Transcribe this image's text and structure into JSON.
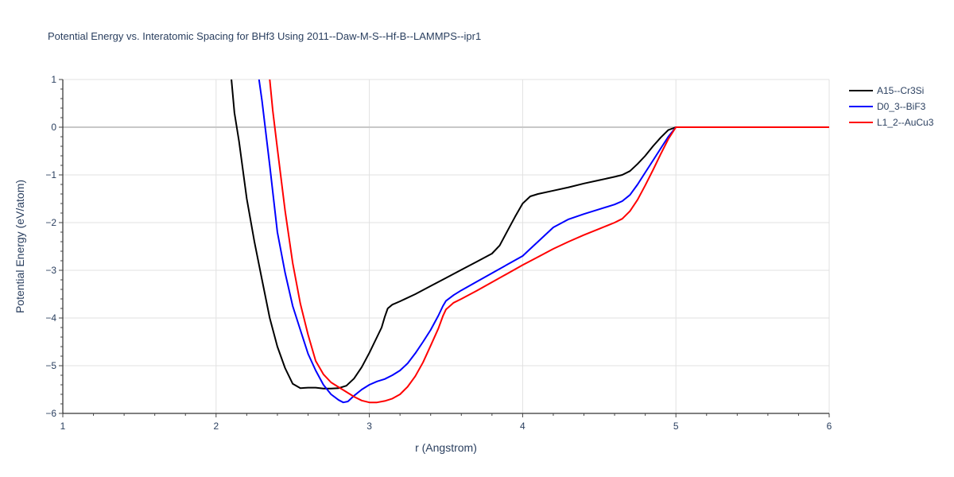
{
  "chart_data": {
    "type": "line",
    "title": "Potential Energy vs. Interatomic Spacing for BHf3 Using 2011--Daw-M-S--Hf-B--LAMMPS--ipr1",
    "xlabel": "r (Angstrom)",
    "ylabel": "Potential Energy (eV/atom)",
    "xlim": [
      1,
      6
    ],
    "ylim": [
      -6,
      1
    ],
    "xticks": [
      1,
      2,
      3,
      4,
      5,
      6
    ],
    "yticks": [
      1,
      0,
      -1,
      -2,
      -3,
      -4,
      -5,
      -6
    ],
    "ytick_labels": [
      "1",
      "0",
      "−1",
      "−2",
      "−3",
      "−4",
      "−5",
      "−6"
    ],
    "grid": true,
    "legend_position": "top-right",
    "series": [
      {
        "name": "A15--Cr3Si",
        "color": "#000000",
        "x": [
          2.1,
          2.12,
          2.15,
          2.2,
          2.25,
          2.3,
          2.35,
          2.4,
          2.45,
          2.5,
          2.55,
          2.6,
          2.65,
          2.7,
          2.75,
          2.8,
          2.85,
          2.9,
          2.95,
          3.0,
          3.05,
          3.08,
          3.1,
          3.12,
          3.15,
          3.2,
          3.3,
          3.4,
          3.5,
          3.6,
          3.7,
          3.8,
          3.85,
          3.9,
          3.95,
          4.0,
          4.05,
          4.1,
          4.2,
          4.3,
          4.4,
          4.5,
          4.6,
          4.65,
          4.7,
          4.75,
          4.8,
          4.85,
          4.9,
          4.95,
          5.0,
          5.5,
          6.0
        ],
        "y": [
          1.0,
          0.3,
          -0.3,
          -1.5,
          -2.4,
          -3.2,
          -4.0,
          -4.6,
          -5.05,
          -5.38,
          -5.47,
          -5.46,
          -5.46,
          -5.48,
          -5.48,
          -5.47,
          -5.42,
          -5.27,
          -5.03,
          -4.73,
          -4.4,
          -4.2,
          -3.98,
          -3.8,
          -3.72,
          -3.65,
          -3.5,
          -3.33,
          -3.16,
          -2.99,
          -2.82,
          -2.65,
          -2.48,
          -2.18,
          -1.88,
          -1.6,
          -1.45,
          -1.4,
          -1.33,
          -1.26,
          -1.18,
          -1.11,
          -1.04,
          -1.0,
          -0.92,
          -0.77,
          -0.6,
          -0.4,
          -0.22,
          -0.06,
          0.0,
          0.0,
          0.0
        ]
      },
      {
        "name": "D0_3--BiF3",
        "color": "#0000ff",
        "x": [
          2.28,
          2.3,
          2.35,
          2.4,
          2.45,
          2.5,
          2.55,
          2.6,
          2.65,
          2.7,
          2.75,
          2.8,
          2.83,
          2.86,
          2.9,
          2.95,
          3.0,
          3.05,
          3.1,
          3.15,
          3.2,
          3.25,
          3.3,
          3.35,
          3.4,
          3.45,
          3.48,
          3.5,
          3.55,
          3.6,
          3.7,
          3.8,
          3.9,
          4.0,
          4.05,
          4.1,
          4.2,
          4.3,
          4.4,
          4.5,
          4.6,
          4.65,
          4.7,
          4.75,
          4.8,
          4.85,
          4.9,
          4.95,
          5.0,
          5.5,
          6.0
        ],
        "y": [
          1.0,
          0.55,
          -0.8,
          -2.2,
          -3.05,
          -3.75,
          -4.25,
          -4.75,
          -5.1,
          -5.4,
          -5.6,
          -5.72,
          -5.77,
          -5.75,
          -5.63,
          -5.5,
          -5.4,
          -5.33,
          -5.28,
          -5.2,
          -5.1,
          -4.95,
          -4.74,
          -4.5,
          -4.25,
          -3.95,
          -3.75,
          -3.64,
          -3.52,
          -3.42,
          -3.24,
          -3.06,
          -2.88,
          -2.7,
          -2.55,
          -2.4,
          -2.1,
          -1.93,
          -1.82,
          -1.72,
          -1.62,
          -1.55,
          -1.42,
          -1.2,
          -0.95,
          -0.7,
          -0.45,
          -0.2,
          0.0,
          0.0,
          0.0
        ]
      },
      {
        "name": "L1_2--AuCu3",
        "color": "#ff0000",
        "x": [
          2.35,
          2.37,
          2.4,
          2.45,
          2.5,
          2.55,
          2.6,
          2.65,
          2.7,
          2.75,
          2.8,
          2.85,
          2.9,
          2.95,
          3.0,
          3.05,
          3.1,
          3.15,
          3.2,
          3.25,
          3.3,
          3.35,
          3.4,
          3.45,
          3.48,
          3.5,
          3.55,
          3.6,
          3.7,
          3.8,
          3.9,
          4.0,
          4.1,
          4.2,
          4.3,
          4.4,
          4.5,
          4.6,
          4.65,
          4.7,
          4.75,
          4.8,
          4.85,
          4.9,
          4.95,
          5.0,
          5.5,
          6.0
        ],
        "y": [
          1.0,
          0.35,
          -0.45,
          -1.75,
          -2.85,
          -3.7,
          -4.35,
          -4.9,
          -5.18,
          -5.35,
          -5.45,
          -5.55,
          -5.65,
          -5.73,
          -5.77,
          -5.77,
          -5.74,
          -5.69,
          -5.6,
          -5.44,
          -5.22,
          -4.93,
          -4.58,
          -4.22,
          -3.96,
          -3.82,
          -3.68,
          -3.6,
          -3.43,
          -3.25,
          -3.07,
          -2.89,
          -2.72,
          -2.55,
          -2.4,
          -2.26,
          -2.13,
          -2.0,
          -1.92,
          -1.76,
          -1.52,
          -1.22,
          -0.9,
          -0.57,
          -0.25,
          0.0,
          0.0,
          0.0
        ]
      }
    ]
  }
}
